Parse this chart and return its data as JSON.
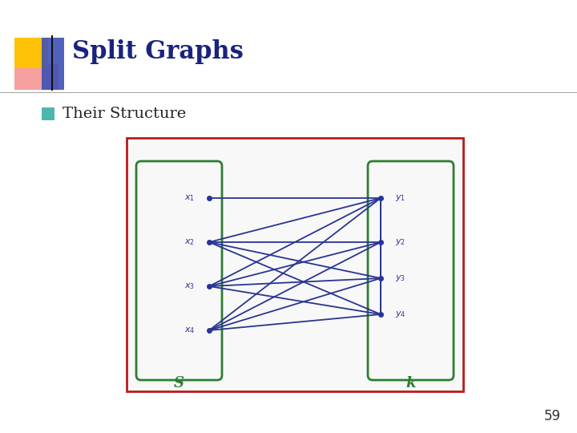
{
  "title": "Split Graphs",
  "bullet_text": "Their Structure",
  "page_number": "59",
  "background_color": "#ffffff",
  "title_color": "#1a237e",
  "title_fontsize": 22,
  "bullet_color": "#4db6ac",
  "bullet_text_color": "#222222",
  "bullet_fontsize": 14,
  "page_number_color": "#333333",
  "header_line_color": "#aaaaaa",
  "logo_yellow": "#ffc107",
  "logo_red": "#ef5350",
  "logo_blue": "#3f51b5",
  "image_border_color": "#b71c1c",
  "green_box_color": "#2e7d32",
  "graph_line_color": "#283593",
  "node_color": "#283593",
  "img_bg": "#f8f8f8",
  "s_label": "S",
  "k_label": "k"
}
